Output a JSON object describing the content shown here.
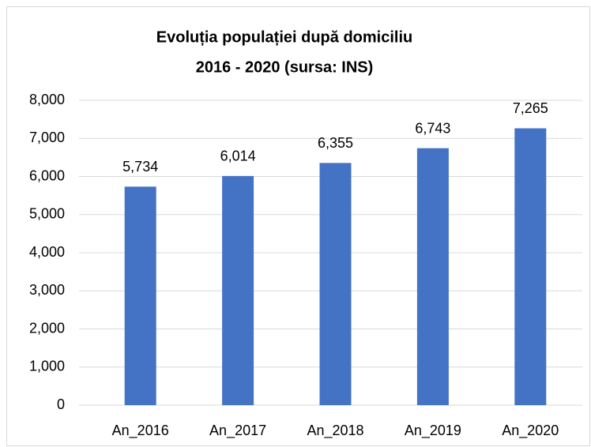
{
  "chart_data": {
    "type": "bar",
    "title": [
      "Evoluția populației după domiciliu",
      "2016 - 2020 (sursa: INS)"
    ],
    "categories": [
      "An_2016",
      "An_2017",
      "An_2018",
      "An_2019",
      "An_2020"
    ],
    "values": [
      5734,
      6014,
      6355,
      6743,
      7265
    ],
    "value_labels": [
      "5,734",
      "6,014",
      "6,355",
      "6,743",
      "7,265"
    ],
    "color": "#4472c4",
    "ylim": [
      0,
      8000
    ],
    "yticks": [
      0,
      {
        "value": 1000,
        "label": "1,000"
      },
      {
        "value": 2000,
        "label": "2,000"
      },
      {
        "value": 3000,
        "label": "3,000"
      },
      {
        "value": 4000,
        "label": "4,000"
      },
      {
        "value": 5000,
        "label": "5,000"
      },
      {
        "value": 6000,
        "label": "6,000"
      },
      {
        "value": 7000,
        "label": "7,000"
      },
      {
        "value": 8000,
        "label": "8,000"
      }
    ],
    "grid": true
  }
}
